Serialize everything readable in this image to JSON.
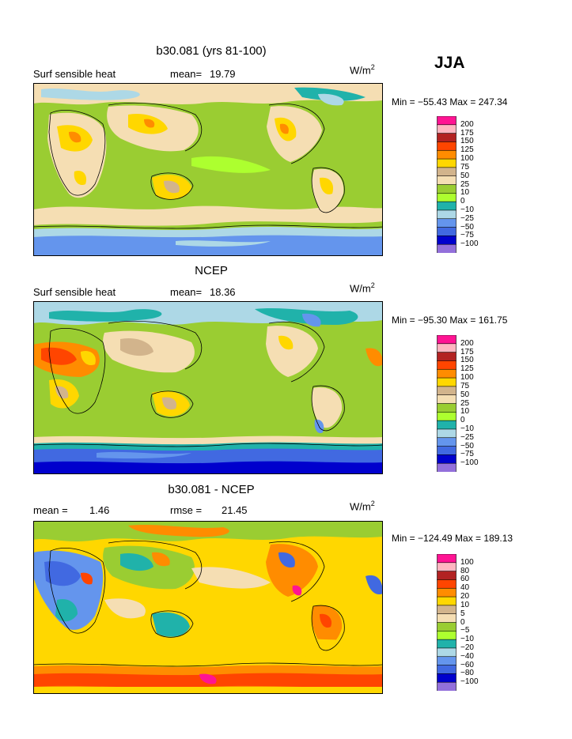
{
  "season": "JJA",
  "colors": {
    "pink": "#ff1493",
    "lightpink": "#ffb6c1",
    "brickred": "#b22222",
    "redorange": "#ff4500",
    "orange": "#ff8c00",
    "yellow": "#ffd700",
    "tan": "#d2b48c",
    "wheat": "#f5deb3",
    "olive": "#9acd32",
    "lightgreen": "#adff2f",
    "teal": "#20b2aa",
    "lightblue": "#add8e6",
    "cornflower": "#6495ed",
    "royalblue": "#4169e1",
    "darkblue": "#0000cd",
    "purple": "#9370db"
  },
  "panels": [
    {
      "title": "b30.081 (yrs 81-100)",
      "left_label": "Surf sensible heat",
      "mean_label": "mean=",
      "mean_value": "19.79",
      "unit": "W/m",
      "unit_exp": "2",
      "minmax": "Min = −55.43 Max = 247.34",
      "colorbar": [
        "200",
        "175",
        "150",
        "125",
        "100",
        "75",
        "50",
        "25",
        "10",
        "0",
        "−10",
        "−25",
        "−50",
        "−75",
        "−100"
      ]
    },
    {
      "title": "NCEP",
      "left_label": "Surf sensible heat",
      "mean_label": "mean=",
      "mean_value": "18.36",
      "unit": "W/m",
      "unit_exp": "2",
      "minmax": "Min = −95.30 Max = 161.75",
      "colorbar": [
        "200",
        "175",
        "150",
        "125",
        "100",
        "75",
        "50",
        "25",
        "10",
        "0",
        "−10",
        "−25",
        "−50",
        "−75",
        "−100"
      ]
    },
    {
      "title": "b30.081 - NCEP",
      "left_label": "mean =",
      "left_value": "1.46",
      "rmse_label": "rmse =",
      "rmse_value": "21.45",
      "unit": "W/m",
      "unit_exp": "2",
      "minmax": "Min = −124.49 Max = 189.13",
      "colorbar": [
        "100",
        "80",
        "60",
        "40",
        "20",
        "10",
        "5",
        "0",
        "−5",
        "−10",
        "−20",
        "−40",
        "−60",
        "−80",
        "−100"
      ]
    }
  ]
}
